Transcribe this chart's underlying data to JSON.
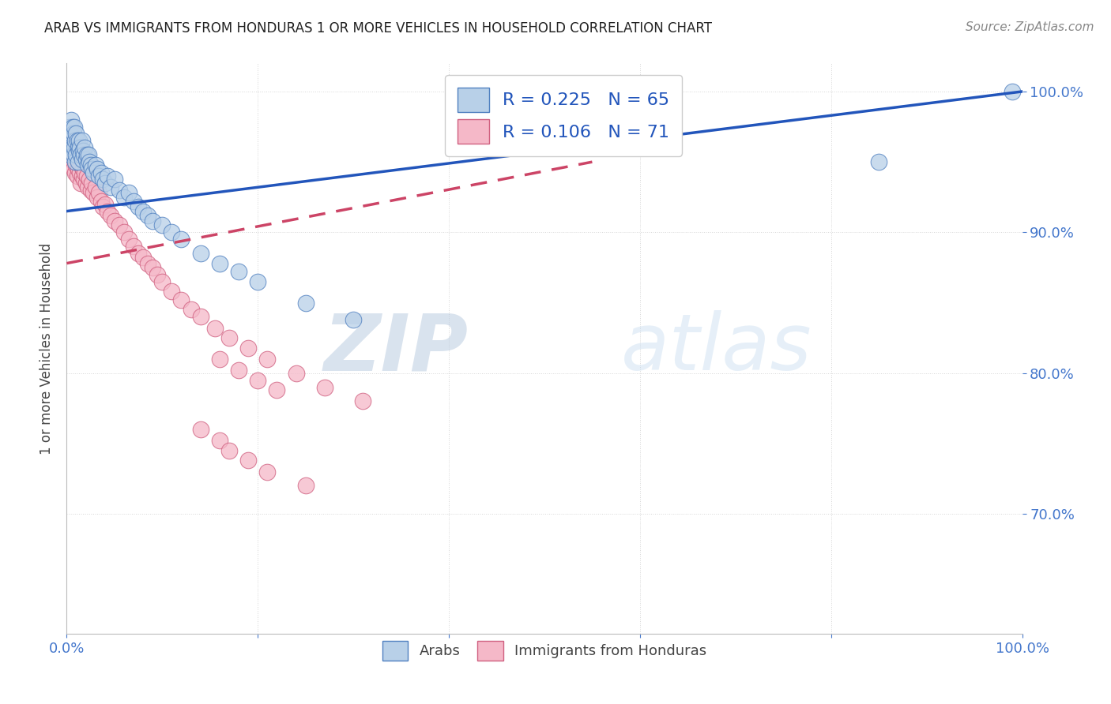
{
  "title": "ARAB VS IMMIGRANTS FROM HONDURAS 1 OR MORE VEHICLES IN HOUSEHOLD CORRELATION CHART",
  "source": "Source: ZipAtlas.com",
  "ylabel": "1 or more Vehicles in Household",
  "ytick_labels": [
    "70.0%",
    "80.0%",
    "90.0%",
    "100.0%"
  ],
  "ytick_values": [
    0.7,
    0.8,
    0.9,
    1.0
  ],
  "xlim": [
    0.0,
    1.0
  ],
  "ylim": [
    0.615,
    1.02
  ],
  "legend_arab": "Arabs",
  "legend_honduras": "Immigrants from Honduras",
  "arab_R": "R = 0.225",
  "arab_N": "N = 65",
  "honduras_R": "R = 0.106",
  "honduras_N": "N = 71",
  "arab_color": "#b8d0e8",
  "arab_edge_color": "#5080c0",
  "arab_line_color": "#2255bb",
  "honduras_color": "#f5b8c8",
  "honduras_edge_color": "#d06080",
  "honduras_line_color": "#cc4466",
  "watermark_zip": "ZIP",
  "watermark_atlas": "atlas",
  "arab_x": [
    0.002,
    0.002,
    0.003,
    0.003,
    0.004,
    0.004,
    0.005,
    0.006,
    0.006,
    0.007,
    0.007,
    0.008,
    0.008,
    0.009,
    0.009,
    0.01,
    0.01,
    0.011,
    0.012,
    0.012,
    0.013,
    0.013,
    0.014,
    0.015,
    0.016,
    0.016,
    0.017,
    0.018,
    0.019,
    0.02,
    0.021,
    0.022,
    0.023,
    0.024,
    0.025,
    0.026,
    0.028,
    0.03,
    0.032,
    0.034,
    0.036,
    0.038,
    0.04,
    0.043,
    0.046,
    0.05,
    0.055,
    0.06,
    0.065,
    0.07,
    0.075,
    0.08,
    0.085,
    0.09,
    0.1,
    0.11,
    0.12,
    0.14,
    0.16,
    0.18,
    0.2,
    0.25,
    0.3,
    0.85,
    0.99
  ],
  "arab_y": [
    0.97,
    0.96,
    0.975,
    0.965,
    0.97,
    0.955,
    0.98,
    0.975,
    0.96,
    0.97,
    0.955,
    0.975,
    0.96,
    0.965,
    0.95,
    0.97,
    0.955,
    0.965,
    0.96,
    0.95,
    0.965,
    0.958,
    0.96,
    0.955,
    0.965,
    0.952,
    0.958,
    0.955,
    0.96,
    0.952,
    0.955,
    0.948,
    0.955,
    0.95,
    0.948,
    0.945,
    0.942,
    0.948,
    0.945,
    0.94,
    0.942,
    0.938,
    0.935,
    0.94,
    0.932,
    0.938,
    0.93,
    0.925,
    0.928,
    0.922,
    0.918,
    0.915,
    0.912,
    0.908,
    0.905,
    0.9,
    0.895,
    0.885,
    0.878,
    0.872,
    0.865,
    0.85,
    0.838,
    0.95,
    1.0
  ],
  "honduras_x": [
    0.002,
    0.003,
    0.003,
    0.004,
    0.005,
    0.005,
    0.006,
    0.007,
    0.007,
    0.008,
    0.009,
    0.009,
    0.01,
    0.011,
    0.011,
    0.012,
    0.013,
    0.014,
    0.015,
    0.015,
    0.016,
    0.017,
    0.018,
    0.019,
    0.02,
    0.021,
    0.022,
    0.024,
    0.025,
    0.026,
    0.028,
    0.03,
    0.032,
    0.034,
    0.036,
    0.038,
    0.04,
    0.043,
    0.046,
    0.05,
    0.055,
    0.06,
    0.065,
    0.07,
    0.075,
    0.08,
    0.085,
    0.09,
    0.095,
    0.1,
    0.11,
    0.12,
    0.13,
    0.14,
    0.155,
    0.17,
    0.19,
    0.21,
    0.24,
    0.27,
    0.31,
    0.16,
    0.18,
    0.2,
    0.22,
    0.14,
    0.16,
    0.17,
    0.19,
    0.21,
    0.25
  ],
  "honduras_y": [
    0.96,
    0.965,
    0.952,
    0.958,
    0.962,
    0.948,
    0.955,
    0.96,
    0.945,
    0.952,
    0.958,
    0.942,
    0.948,
    0.955,
    0.94,
    0.945,
    0.95,
    0.942,
    0.948,
    0.935,
    0.94,
    0.945,
    0.938,
    0.942,
    0.935,
    0.94,
    0.932,
    0.938,
    0.93,
    0.935,
    0.928,
    0.932,
    0.925,
    0.928,
    0.922,
    0.918,
    0.92,
    0.915,
    0.912,
    0.908,
    0.905,
    0.9,
    0.895,
    0.89,
    0.885,
    0.882,
    0.878,
    0.875,
    0.87,
    0.865,
    0.858,
    0.852,
    0.845,
    0.84,
    0.832,
    0.825,
    0.818,
    0.81,
    0.8,
    0.79,
    0.78,
    0.81,
    0.802,
    0.795,
    0.788,
    0.76,
    0.752,
    0.745,
    0.738,
    0.73,
    0.72
  ]
}
